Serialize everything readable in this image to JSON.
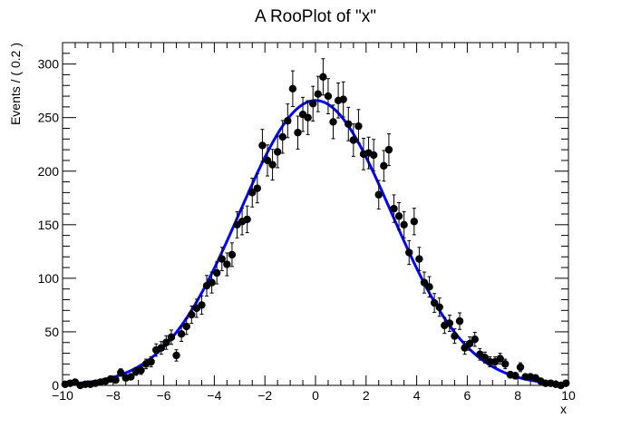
{
  "chart_data": {
    "type": "scatter",
    "title": "A RooPlot of \"x\"",
    "xlabel": "x",
    "ylabel": "Events / ( 0.2 )",
    "xlim": [
      -10,
      10
    ],
    "ylim": [
      0,
      320
    ],
    "x_ticks": [
      -10,
      -8,
      -6,
      -4,
      -2,
      0,
      2,
      4,
      6,
      8,
      10
    ],
    "y_ticks": [
      0,
      50,
      100,
      150,
      200,
      250,
      300
    ],
    "x_tick_labels": [
      "−10",
      "−8",
      "−6",
      "−4",
      "−2",
      "0",
      "2",
      "4",
      "6",
      "8",
      "10"
    ],
    "y_tick_labels": [
      "0",
      "50",
      "100",
      "150",
      "200",
      "250",
      "300"
    ],
    "grid": false,
    "legend": "none",
    "colors": {
      "data": "#000000",
      "curve": "#0000ff"
    },
    "series": [
      {
        "kind": "points_with_errors",
        "x": [
          -9.9,
          -9.7,
          -9.5,
          -9.3,
          -9.1,
          -8.9,
          -8.7,
          -8.5,
          -8.3,
          -8.1,
          -7.9,
          -7.7,
          -7.5,
          -7.3,
          -7.1,
          -6.9,
          -6.7,
          -6.5,
          -6.3,
          -6.1,
          -5.9,
          -5.7,
          -5.5,
          -5.3,
          -5.1,
          -4.9,
          -4.7,
          -4.5,
          -4.3,
          -4.1,
          -3.9,
          -3.7,
          -3.5,
          -3.3,
          -3.1,
          -2.9,
          -2.7,
          -2.5,
          -2.3,
          -2.1,
          -1.9,
          -1.7,
          -1.5,
          -1.3,
          -1.1,
          -0.9,
          -0.7,
          -0.5,
          -0.3,
          -0.1,
          0.1,
          0.3,
          0.5,
          0.7,
          0.9,
          1.1,
          1.3,
          1.5,
          1.7,
          1.9,
          2.1,
          2.3,
          2.5,
          2.7,
          2.9,
          3.1,
          3.3,
          3.5,
          3.7,
          3.9,
          4.1,
          4.3,
          4.5,
          4.7,
          4.9,
          5.1,
          5.3,
          5.5,
          5.7,
          5.9,
          6.1,
          6.3,
          6.5,
          6.7,
          6.9,
          7.1,
          7.3,
          7.5,
          7.7,
          7.9,
          8.1,
          8.3,
          8.5,
          8.7,
          8.9,
          9.1,
          9.3,
          9.5,
          9.7,
          9.9
        ],
        "y": [
          1,
          2,
          3,
          0,
          1,
          1,
          2,
          3,
          4,
          6,
          5,
          12,
          7,
          8,
          13,
          14,
          20,
          22,
          33,
          35,
          40,
          45,
          28,
          48,
          55,
          66,
          72,
          75,
          93,
          96,
          105,
          118,
          113,
          122,
          150,
          153,
          155,
          180,
          184,
          224,
          210,
          206,
          218,
          232,
          247,
          277,
          236,
          253,
          250,
          263,
          272,
          288,
          270,
          246,
          266,
          267,
          244,
          229,
          242,
          216,
          217,
          215,
          178,
          205,
          220,
          165,
          158,
          150,
          124,
          153,
          118,
          96,
          92,
          77,
          73,
          56,
          58,
          46,
          60,
          35,
          39,
          43,
          29,
          26,
          22,
          22,
          25,
          20,
          10,
          9,
          17,
          8,
          8,
          7,
          4,
          2,
          2,
          1,
          0,
          2
        ]
      },
      {
        "kind": "fit_curve",
        "model": "gaussian",
        "mean": 0,
        "sigma": 3,
        "peak": 266
      }
    ]
  }
}
